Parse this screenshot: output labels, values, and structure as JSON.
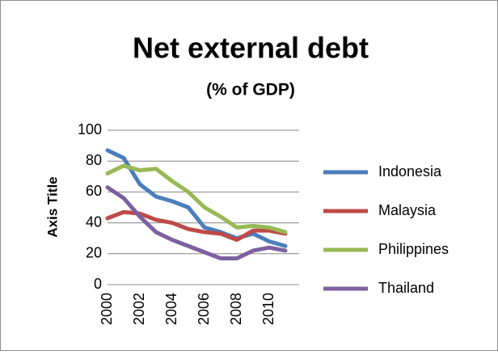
{
  "chart_data": {
    "type": "line",
    "title": "Net external debt",
    "subtitle": "(% of GDP)",
    "y_label": "Axis Title",
    "categories": [
      "2000",
      null,
      "2002",
      null,
      "2004",
      null,
      "2006",
      null,
      "2008",
      null,
      "2010",
      null
    ],
    "series": [
      {
        "name": "Indonesia",
        "color": "#4a7ebb",
        "values": [
          87,
          82,
          65,
          57,
          54,
          50,
          37,
          34,
          30,
          33,
          28,
          25
        ]
      },
      {
        "name": "Malaysia",
        "color": "#be4b48",
        "values": [
          43,
          47,
          46,
          42,
          40,
          36,
          34,
          33,
          29,
          35,
          35,
          33
        ]
      },
      {
        "name": "Philippines",
        "color": "#98b954",
        "values": [
          72,
          77,
          74,
          75,
          67,
          60,
          50,
          44,
          37,
          38,
          37,
          34
        ]
      },
      {
        "name": "Thailand",
        "color": "#7d60a0",
        "values": [
          63,
          56,
          44,
          34,
          29,
          25,
          21,
          17,
          17,
          22,
          24,
          22
        ]
      }
    ],
    "ylim": [
      0,
      100
    ],
    "yticks": [
      0,
      20,
      40,
      60,
      80,
      100
    ],
    "grid": true,
    "legend": "right"
  }
}
